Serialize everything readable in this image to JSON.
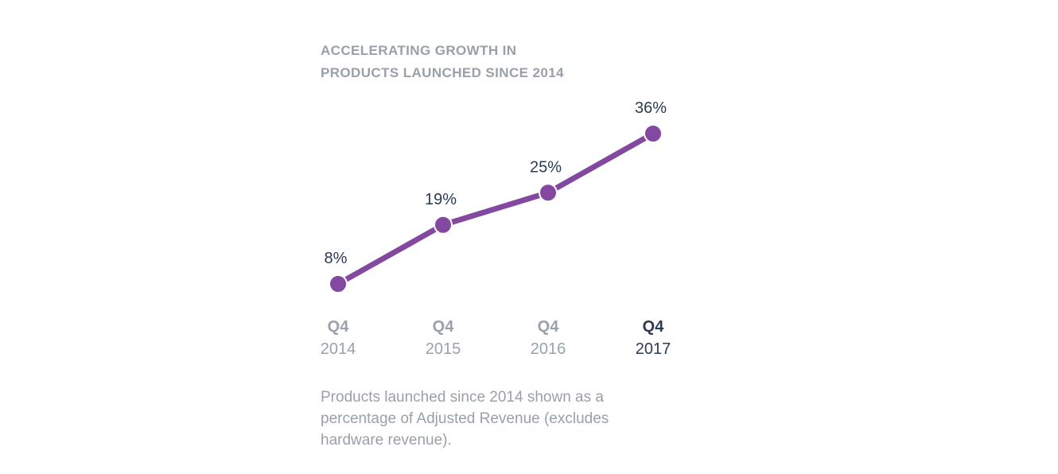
{
  "page": {
    "background_color": "#ffffff"
  },
  "chart_data": {
    "type": "line",
    "title": "ACCELERATING GROWTH IN\nPRODUCTS LAUNCHED SINCE 2014",
    "categories": [
      {
        "quarter": "Q4",
        "year": "2014",
        "emphasized": false
      },
      {
        "quarter": "Q4",
        "year": "2015",
        "emphasized": false
      },
      {
        "quarter": "Q4",
        "year": "2016",
        "emphasized": false
      },
      {
        "quarter": "Q4",
        "year": "2017",
        "emphasized": true
      }
    ],
    "values": [
      8,
      19,
      25,
      36
    ],
    "point_labels": [
      "8%",
      "19%",
      "25%",
      "36%"
    ],
    "xlabel": "",
    "ylabel": "",
    "ylim": [
      0,
      45
    ],
    "grid": false,
    "legend": false,
    "marker_shape": "circle",
    "footnote": "Products launched since 2014 shown as a\npercentage of Adjusted Revenue (excludes\nhardware revenue).",
    "colors": {
      "line": "#8348A0",
      "marker": "#8348A0",
      "marker_halo": "#ffffff",
      "value_label": "#2B3A55",
      "axis_label": "#9BA1AB",
      "axis_label_emphasized": "#2B3A55",
      "title": "#9AA0A9",
      "footnote": "#9AA0A9"
    }
  }
}
